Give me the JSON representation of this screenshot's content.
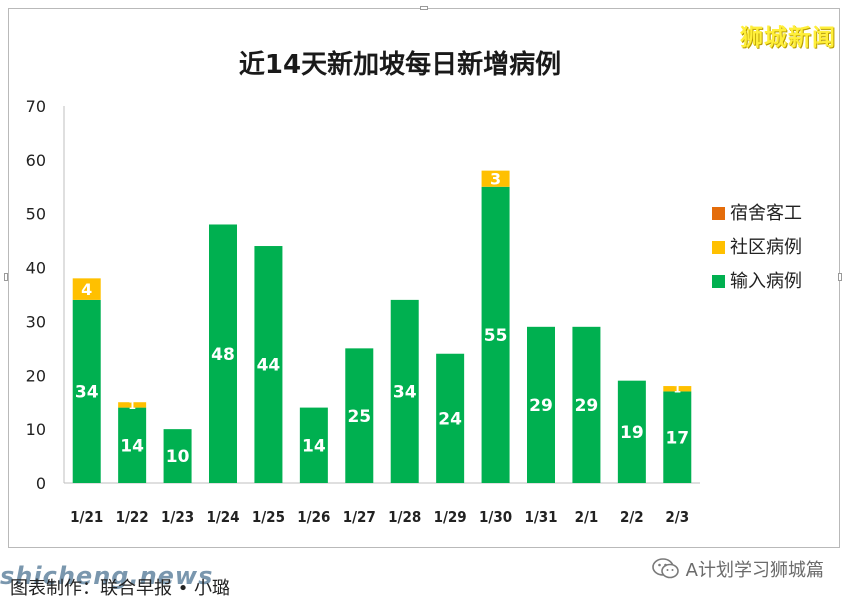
{
  "brand": "狮城新闻",
  "watermark_text": "shicheng.news",
  "caption": "图表制作：联合早报 • 小璐",
  "account_name": "A计划学习狮城篇",
  "colors": {
    "dorm": "#e46c0a",
    "community": "#ffc000",
    "imported": "#00b050",
    "frame": "#b9b9b9"
  },
  "icons": [
    "wechat-icon"
  ],
  "chart_data": {
    "type": "bar",
    "stacked": true,
    "title": "近14天新加坡每日新增病例",
    "xlabel": "",
    "ylabel": "",
    "categories": [
      "1/21",
      "1/22",
      "1/23",
      "1/24",
      "1/25",
      "1/26",
      "1/27",
      "1/28",
      "1/29",
      "1/30",
      "1/31",
      "2/1",
      "2/2",
      "2/3"
    ],
    "series": [
      {
        "name": "输入病例",
        "color": "#00b050",
        "values": [
          34,
          14,
          10,
          48,
          44,
          14,
          25,
          34,
          24,
          55,
          29,
          29,
          19,
          17
        ]
      },
      {
        "name": "社区病例",
        "color": "#ffc000",
        "values": [
          4,
          1,
          0,
          0,
          0,
          0,
          0,
          0,
          0,
          3,
          0,
          0,
          0,
          1
        ]
      },
      {
        "name": "宿舍客工",
        "color": "#e46c0a",
        "values": [
          0,
          0,
          0,
          0,
          0,
          0,
          0,
          0,
          0,
          0,
          0,
          0,
          0,
          0
        ]
      }
    ],
    "legend_order": [
      "宿舍客工",
      "社区病例",
      "输入病例"
    ],
    "ylim": [
      0,
      70
    ],
    "yticks": [
      0,
      10,
      20,
      30,
      40,
      50,
      60,
      70
    ],
    "grid": false,
    "legend_position": "right"
  }
}
